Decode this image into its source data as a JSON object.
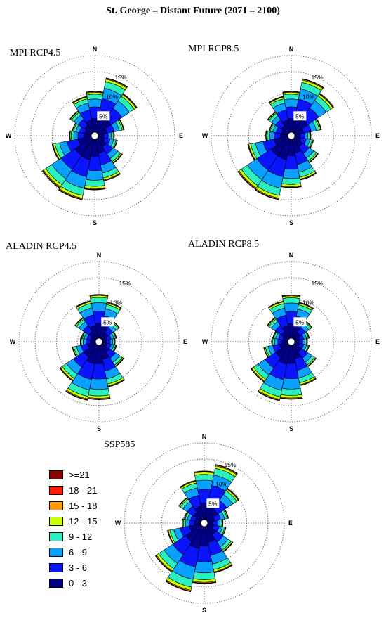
{
  "title": "St. George – Distant Future (2071 – 2100)",
  "legend": [
    {
      "label": ">=21",
      "color": "#8b0000"
    },
    {
      "label": "18 - 21",
      "color": "#ff1a00"
    },
    {
      "label": "15 - 18",
      "color": "#ff9a00"
    },
    {
      "label": "12 - 15",
      "color": "#ccff00"
    },
    {
      "label": "9 - 12",
      "color": "#2af0c0"
    },
    {
      "label": "6 - 9",
      "color": "#0aa0ff"
    },
    {
      "label": "3 - 6",
      "color": "#0a14ff"
    },
    {
      "label": "0 - 3",
      "color": "#00008b"
    }
  ],
  "chart_data": [
    {
      "type": "polar-bar",
      "title": "MPI RCP4.5",
      "directions": [
        "N",
        "NNE",
        "NE",
        "ENE",
        "E",
        "ESE",
        "SE",
        "SSE",
        "S",
        "SSW",
        "SW",
        "WSW",
        "W",
        "WNW",
        "NW",
        "NNW"
      ],
      "rings": [
        5,
        10,
        15
      ],
      "ring_labels": [
        "5%",
        "10%",
        "15%"
      ],
      "compass": [
        "N",
        "E",
        "S",
        "W"
      ],
      "totals": [
        9.6,
        13.0,
        11.1,
        6.2,
        3.8,
        4.6,
        7.0,
        10.0,
        11.9,
        14.5,
        14.0,
        9.4,
        5.1,
        4.6,
        6.2,
        8.6
      ]
    },
    {
      "type": "polar-bar",
      "title": "MPI RCP8.5",
      "directions": [
        "N",
        "NNE",
        "NE",
        "ENE",
        "E",
        "ESE",
        "SE",
        "SSE",
        "S",
        "SSW",
        "SW",
        "WSW",
        "W",
        "WNW",
        "NW",
        "NNW"
      ],
      "rings": [
        5,
        10,
        15
      ],
      "ring_labels": [
        "5%",
        "10%",
        "15%"
      ],
      "compass": [
        "N",
        "E",
        "S",
        "W"
      ],
      "totals": [
        9.6,
        12.8,
        11.2,
        6.4,
        3.8,
        4.5,
        6.8,
        9.8,
        11.4,
        14.5,
        14.3,
        9.6,
        5.2,
        4.5,
        5.9,
        8.6
      ]
    },
    {
      "type": "polar-bar",
      "title": "ALADIN RCP4.5",
      "directions": [
        "N",
        "NNE",
        "NE",
        "ENE",
        "E",
        "ESE",
        "SE",
        "SSE",
        "S",
        "SSW",
        "SW",
        "WSW",
        "W",
        "WNW",
        "NW",
        "NNW"
      ],
      "rings": [
        5,
        10,
        15
      ],
      "ring_labels": [
        "5%",
        "10%",
        "15%"
      ],
      "compass": [
        "N",
        "E",
        "S",
        "W"
      ],
      "totals": [
        10.3,
        8.7,
        5.0,
        3.4,
        3.0,
        3.4,
        6.2,
        10.0,
        12.8,
        13.2,
        10.3,
        5.6,
        3.6,
        3.4,
        6.0,
        9.0
      ]
    },
    {
      "type": "polar-bar",
      "title": "ALADIN RCP8.5",
      "directions": [
        "N",
        "NNE",
        "NE",
        "ENE",
        "E",
        "ESE",
        "SE",
        "SSE",
        "S",
        "SSW",
        "SW",
        "WSW",
        "W",
        "WNW",
        "NW",
        "NNW"
      ],
      "rings": [
        5,
        10,
        15
      ],
      "ring_labels": [
        "5%",
        "10%",
        "15%"
      ],
      "compass": [
        "N",
        "E",
        "S",
        "W"
      ],
      "totals": [
        10.2,
        8.6,
        5.1,
        3.5,
        3.0,
        3.5,
        6.2,
        9.7,
        12.7,
        13.3,
        10.6,
        5.8,
        3.8,
        3.6,
        6.0,
        8.9
      ]
    },
    {
      "type": "polar-bar",
      "title": "SSP585",
      "directions": [
        "N",
        "NNE",
        "NE",
        "ENE",
        "E",
        "ESE",
        "SE",
        "SSE",
        "S",
        "SSW",
        "SW",
        "WSW",
        "W",
        "WNW",
        "NW",
        "NNW"
      ],
      "rings": [
        5,
        10,
        15
      ],
      "ring_labels": [
        "5%",
        "10%",
        "15%"
      ],
      "compass": [
        "N",
        "E",
        "S",
        "W"
      ],
      "totals": [
        11.4,
        13.2,
        9.0,
        5.0,
        3.6,
        4.4,
        7.3,
        11.1,
        13.4,
        15.6,
        13.0,
        8.0,
        4.4,
        4.0,
        6.4,
        9.4
      ]
    }
  ]
}
